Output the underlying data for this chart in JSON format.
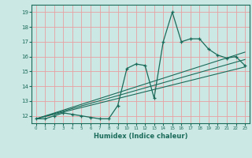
{
  "title": "",
  "xlabel": "Humidex (Indice chaleur)",
  "ylabel": "",
  "bg_color": "#cce8e4",
  "grid_color": "#e8a0a0",
  "line_color": "#1a6b5a",
  "xlim": [
    -0.5,
    23.5
  ],
  "ylim": [
    11.5,
    19.5
  ],
  "xticks": [
    0,
    1,
    2,
    3,
    4,
    5,
    6,
    7,
    8,
    9,
    10,
    11,
    12,
    13,
    14,
    15,
    16,
    17,
    18,
    19,
    20,
    21,
    22,
    23
  ],
  "yticks": [
    12,
    13,
    14,
    15,
    16,
    17,
    18,
    19
  ],
  "line1_x": [
    0,
    1,
    2,
    3,
    4,
    5,
    6,
    7,
    8,
    9,
    10,
    11,
    12,
    13,
    14,
    15,
    16,
    17,
    18,
    19,
    20,
    21,
    22,
    23
  ],
  "line1_y": [
    11.8,
    11.8,
    12.0,
    12.2,
    12.1,
    12.0,
    11.9,
    11.8,
    11.8,
    12.7,
    15.2,
    15.5,
    15.4,
    13.2,
    17.0,
    19.0,
    17.0,
    17.2,
    17.2,
    16.5,
    16.1,
    15.9,
    16.0,
    15.4
  ],
  "line2_x": [
    0,
    23
  ],
  "line2_y": [
    11.8,
    15.3
  ],
  "line3_x": [
    0,
    23
  ],
  "line3_y": [
    11.8,
    15.8
  ],
  "line4_x": [
    0,
    23
  ],
  "line4_y": [
    11.8,
    16.3
  ]
}
